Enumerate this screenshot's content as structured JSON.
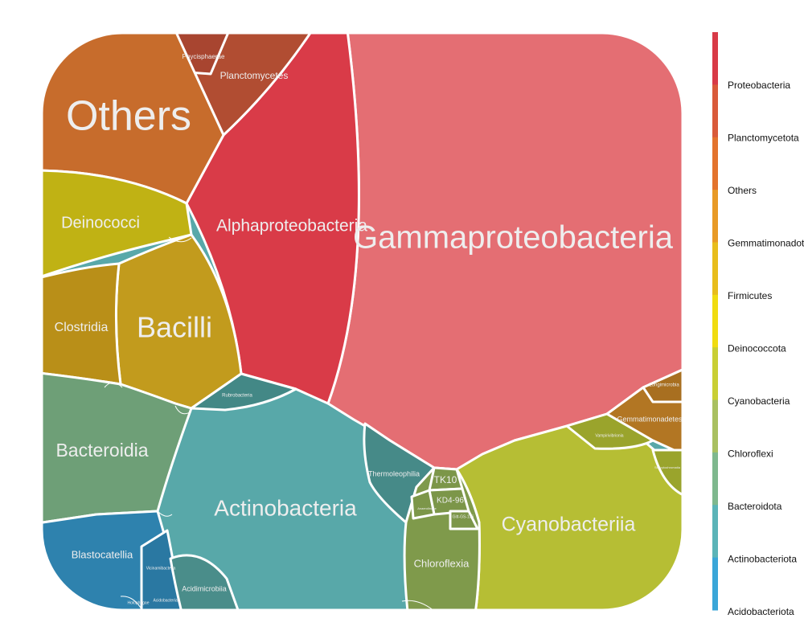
{
  "chart_data": {
    "type": "voronoi-treemap",
    "title": "",
    "legend": {
      "position": "right",
      "entries": [
        {
          "name": "Proteobacteria",
          "color": "#d83a47"
        },
        {
          "name": "Planctomycetota",
          "color": "#d95a3a"
        },
        {
          "name": "Others",
          "color": "#e3732d"
        },
        {
          "name": "Gemmatimonadota",
          "color": "#e89a26"
        },
        {
          "name": "Firmicutes",
          "color": "#e8bd1c"
        },
        {
          "name": "Deinococcota",
          "color": "#f0dc10"
        },
        {
          "name": "Cyanobacteria",
          "color": "#c9cf34"
        },
        {
          "name": "Chloroflexi",
          "color": "#a9c061"
        },
        {
          "name": "Bacteroidota",
          "color": "#7fb88e"
        },
        {
          "name": "Actinobacteriota",
          "color": "#5bb4b8"
        },
        {
          "name": "Acidobacteriota",
          "color": "#3aa6d8"
        }
      ]
    },
    "cells": [
      {
        "label": "Gammaproteobacteria",
        "phylum": "Proteobacteria",
        "color": "#e46e73"
      },
      {
        "label": "Alphaproteobacteria",
        "phylum": "Proteobacteria",
        "color": "#d93b48"
      },
      {
        "label": "Others",
        "phylum": "Others",
        "color": "#c76c2c"
      },
      {
        "label": "Planctomycetes",
        "phylum": "Planctomycetota",
        "color": "#b14d32"
      },
      {
        "label": "Phycisphaerae",
        "phylum": "Planctomycetota",
        "color": "#a84530"
      },
      {
        "label": "Deinococci",
        "phylum": "Deinococcota",
        "color": "#c0b214"
      },
      {
        "label": "Bacilli",
        "phylum": "Firmicutes",
        "color": "#c29b1d"
      },
      {
        "label": "Clostridia",
        "phylum": "Firmicutes",
        "color": "#b98f18"
      },
      {
        "label": "Bacteroidia",
        "phylum": "Bacteroidota",
        "color": "#6e9f77"
      },
      {
        "label": "Actinobacteria",
        "phylum": "Actinobacteriota",
        "color": "#58a8a9"
      },
      {
        "label": "Thermoleophilia",
        "phylum": "Actinobacteriota",
        "color": "#468a88"
      },
      {
        "label": "Rubrobacteria",
        "phylum": "Actinobacteriota",
        "color": "#438886"
      },
      {
        "label": "Acidimicrobiia",
        "phylum": "Actinobacteriota",
        "color": "#4a8d8a"
      },
      {
        "label": "Blastocatellia",
        "phylum": "Acidobacteriota",
        "color": "#2e82ae"
      },
      {
        "label": "Vicinamibacteria",
        "phylum": "Acidobacteriota",
        "color": "#2a78a2"
      },
      {
        "label": "Holophagae",
        "phylum": "Acidobacteriota",
        "color": "#2a78a2"
      },
      {
        "label": "Acidobacteriae",
        "phylum": "Acidobacteriota",
        "color": "#2a78a2"
      },
      {
        "label": "Cyanobacteriia",
        "phylum": "Cyanobacteria",
        "color": "#b6be34"
      },
      {
        "label": "Vampirivibrionia",
        "phylum": "Cyanobacteria",
        "color": "#9aa42c"
      },
      {
        "label": "Sericytochromatia",
        "phylum": "Cyanobacteria",
        "color": "#9aa42c"
      },
      {
        "label": "Chloroflexia",
        "phylum": "Chloroflexi",
        "color": "#7f9a4b"
      },
      {
        "label": "TK10",
        "phylum": "Chloroflexi",
        "color": "#7c9649"
      },
      {
        "label": "KD4-96",
        "phylum": "Chloroflexi",
        "color": "#7c9649"
      },
      {
        "label": "Gitt-GS-136",
        "phylum": "Chloroflexi",
        "color": "#7c9649"
      },
      {
        "label": "Anaerolineae",
        "phylum": "Chloroflexi",
        "color": "#7c9649"
      },
      {
        "label": "Gemmatimonadetes",
        "phylum": "Gemmatimonadota",
        "color": "#b27623"
      },
      {
        "label": "Longimicrobia",
        "phylum": "Gemmatimonadota",
        "color": "#a86f20"
      }
    ]
  }
}
